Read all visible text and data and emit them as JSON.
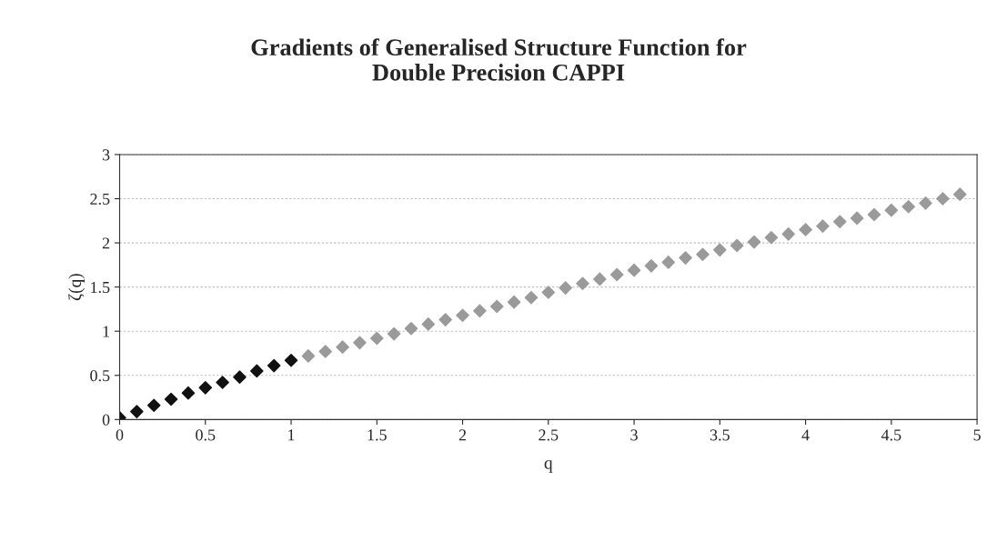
{
  "chart_data": {
    "type": "scatter",
    "title": "Gradients of Generalised Structure Function for\nDouble Precision CAPPI",
    "xlabel": "q",
    "ylabel": "ζ(q)",
    "xlim": [
      0,
      5
    ],
    "xticks": [
      0,
      0.5,
      1,
      1.5,
      2,
      2.5,
      3,
      3.5,
      4,
      4.5,
      5
    ],
    "ylim": [
      0,
      3
    ],
    "yticks": [
      0,
      0.5,
      1,
      1.5,
      2,
      2.5,
      3
    ],
    "grid": "y",
    "legend": false,
    "marker": "diamond",
    "series": [
      {
        "color": "#111111",
        "x": [
          0,
          0.1,
          0.2,
          0.3,
          0.4,
          0.5,
          0.6,
          0.7,
          0.8,
          0.9,
          1.0
        ],
        "values": [
          0.02,
          0.09,
          0.16,
          0.23,
          0.3,
          0.36,
          0.42,
          0.48,
          0.55,
          0.61,
          0.67
        ]
      },
      {
        "color": "#9a9a9a",
        "x": [
          1.1,
          1.2,
          1.3,
          1.4,
          1.5,
          1.6,
          1.7,
          1.8,
          1.9,
          2.0,
          2.1,
          2.2,
          2.3,
          2.4,
          2.5,
          2.6,
          2.7,
          2.8,
          2.9,
          3.0,
          3.1,
          3.2,
          3.3,
          3.4,
          3.5,
          3.6,
          3.7,
          3.8,
          3.9,
          4.0,
          4.1,
          4.2,
          4.3,
          4.4,
          4.5,
          4.6,
          4.7,
          4.8,
          4.9
        ],
        "values": [
          0.72,
          0.77,
          0.82,
          0.87,
          0.92,
          0.97,
          1.03,
          1.08,
          1.13,
          1.18,
          1.23,
          1.28,
          1.33,
          1.38,
          1.44,
          1.49,
          1.54,
          1.59,
          1.64,
          1.69,
          1.74,
          1.78,
          1.83,
          1.87,
          1.92,
          1.97,
          2.01,
          2.06,
          2.1,
          2.15,
          2.19,
          2.24,
          2.28,
          2.32,
          2.37,
          2.41,
          2.45,
          2.5,
          2.55
        ]
      }
    ]
  }
}
